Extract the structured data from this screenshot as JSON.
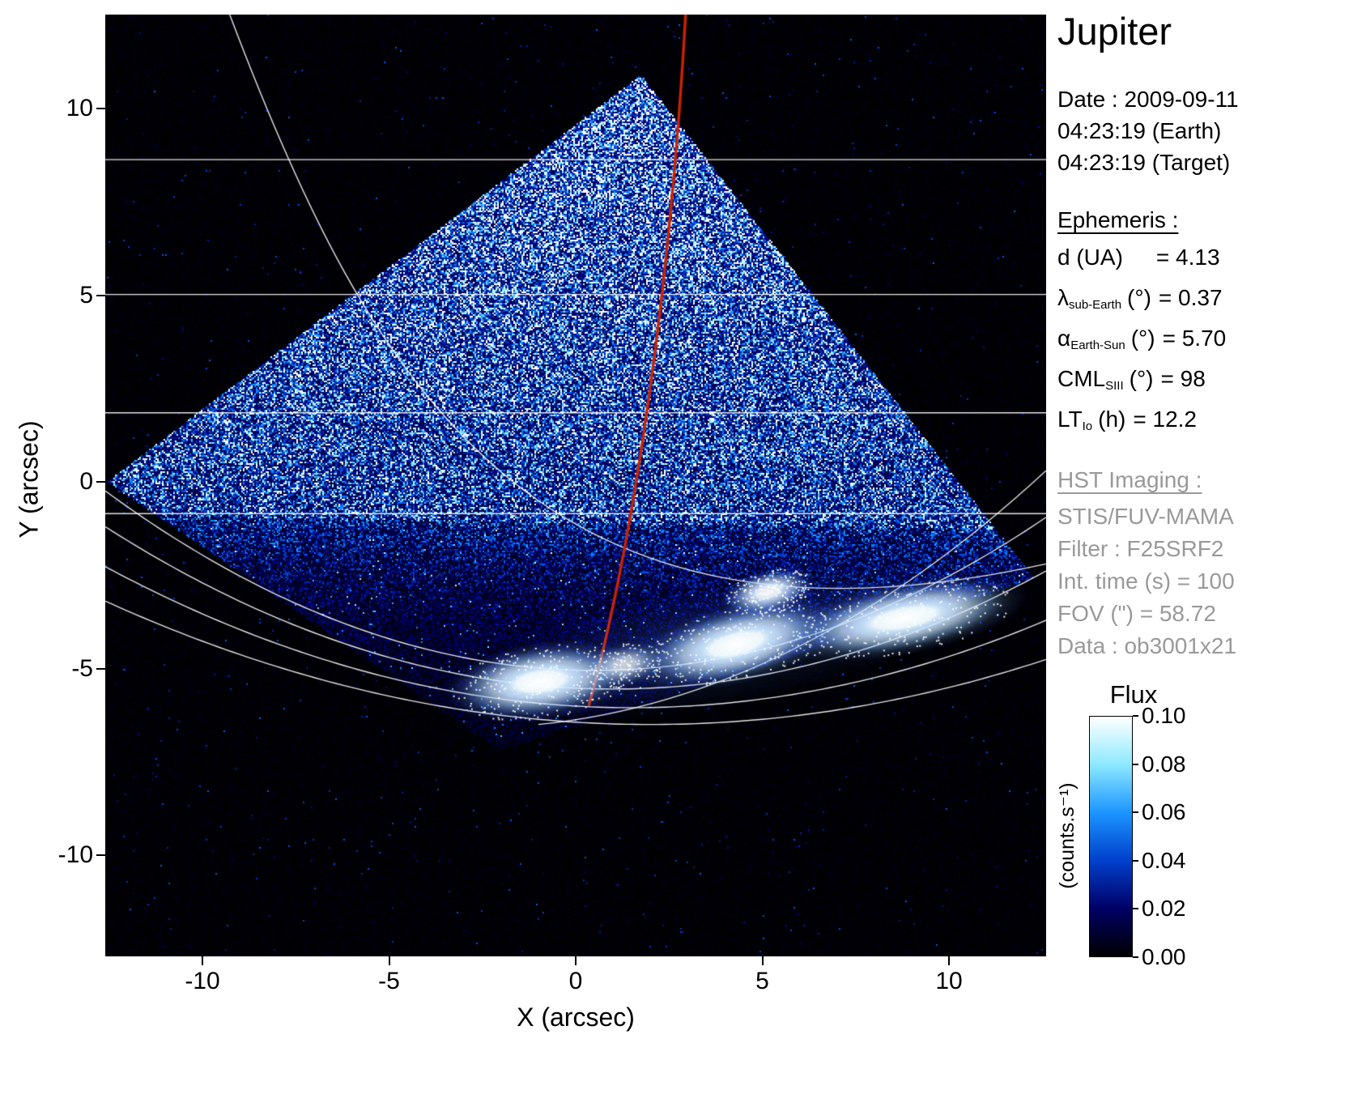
{
  "title": "Jupiter",
  "observation": {
    "date_label": "Date : 2009-09-11",
    "time_earth": "04:23:19 (Earth)",
    "time_target": "04:23:19 (Target)"
  },
  "ephemeris": {
    "heading": "Ephemeris :",
    "rows": [
      {
        "main": "d (UA)",
        "sub": "",
        "mid": "",
        "value": "= 4.13"
      },
      {
        "main": "λ",
        "sub": "sub-Earth",
        "mid": "(°)",
        "value": "= 0.37"
      },
      {
        "main": "α",
        "sub": "Earth-Sun",
        "mid": "(°)",
        "value": "= 5.70"
      },
      {
        "main": "CML",
        "sub": "SIII",
        "mid": "(°)",
        "value": "= 98"
      },
      {
        "main": "LT",
        "sub": "Io",
        "mid": "(h)",
        "value": "= 12.2"
      }
    ]
  },
  "hst": {
    "heading": "HST Imaging :",
    "lines": [
      "STIS/FUV-MAMA",
      "Filter : F25SRF2",
      "Int. time (s) = 100",
      "FOV (\") = 58.72",
      "Data : ob3001x21"
    ]
  },
  "colorbar": {
    "title": "Flux",
    "unit": "(counts.s⁻¹)",
    "tick_labels": [
      "0.10",
      "0.08",
      "0.06",
      "0.04",
      "0.02",
      "0.00"
    ],
    "gradient_top_to_bottom": [
      "#ffffff",
      "#8de9ff",
      "#1c95ff",
      "#0040cc",
      "#000066",
      "#000000"
    ]
  },
  "chart_data": {
    "type": "heatmap",
    "title": "Jupiter FUV auroral image, HST STIS/FUV-MAMA, 2009-09-11 04:23:19",
    "xlabel": "X (arcsec)",
    "ylabel": "Y (arcsec)",
    "xlim": [
      -12.6,
      12.6
    ],
    "ylim": [
      -12.7,
      12.5
    ],
    "xticks": [
      -10,
      -5,
      0,
      5,
      10
    ],
    "yticks": [
      10,
      5,
      0,
      -5,
      -10
    ],
    "flux_min": 0.0,
    "flux_max": 0.1,
    "flux_ticks": [
      0.1,
      0.08,
      0.06,
      0.04,
      0.02,
      0.0
    ],
    "background_color": "#000000",
    "grid_color": "#ffffff",
    "detector_polygon": [
      [
        1.75,
        10.9
      ],
      [
        -12.55,
        0.0
      ],
      [
        -2.0,
        -7.2
      ],
      [
        12.3,
        -2.6
      ]
    ],
    "limb": {
      "y_at_x0": -1.1,
      "slope": -0.015
    },
    "lat_lines_y": [
      8.63,
      5.02,
      1.85,
      -0.85
    ],
    "grid_parabolas": [
      {
        "y0": -5.05,
        "a": 0.028,
        "xc": 0.5
      },
      {
        "y0": -5.55,
        "a": 0.0235,
        "xc": 1.0
      },
      {
        "y0": -6.05,
        "a": 0.019,
        "xc": 1.5
      },
      {
        "y0": -6.5,
        "a": 0.0155,
        "xc": 2.0
      }
    ],
    "grid_curves": [
      {
        "type": "cubic",
        "p0": [
          -9.3,
          12.6
        ],
        "c1": [
          -5.5,
          2.5
        ],
        "c2": [
          -1.0,
          -5.2
        ],
        "p1": [
          12.6,
          -2.2
        ]
      },
      {
        "type": "quad",
        "p0": [
          -1.0,
          -6.5
        ],
        "c": [
          6.0,
          -5.8
        ],
        "p1": [
          12.6,
          0.3
        ]
      }
    ],
    "io_curve": {
      "color": "#cc2200",
      "p0": [
        2.95,
        12.6
      ],
      "c1": [
        2.55,
        5.5
      ],
      "c2": [
        1.6,
        -1.5
      ],
      "p1": [
        0.35,
        -6.0
      ]
    },
    "haze_band": {
      "x": 4.0,
      "y": -4.3,
      "rx": 7.5,
      "ry": 1.7,
      "rot": -11,
      "alpha": 0.22
    },
    "aurora_blobs": [
      {
        "x": -0.95,
        "y": -5.35,
        "rx": 2.1,
        "ry": 0.85,
        "rot": -8,
        "i": 1.0
      },
      {
        "x": 1.3,
        "y": -4.9,
        "rx": 1.0,
        "ry": 0.5,
        "rot": -10,
        "i": 0.5
      },
      {
        "x": 4.3,
        "y": -4.35,
        "rx": 2.3,
        "ry": 0.85,
        "rot": -14,
        "i": 1.0
      },
      {
        "x": 5.15,
        "y": -2.95,
        "rx": 1.05,
        "ry": 0.5,
        "rot": -14,
        "i": 0.8
      },
      {
        "x": 8.8,
        "y": -3.65,
        "rx": 2.7,
        "ry": 0.8,
        "rot": -11,
        "i": 1.0
      }
    ]
  }
}
